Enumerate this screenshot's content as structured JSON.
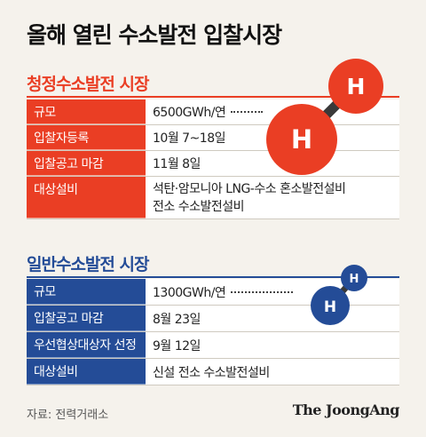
{
  "title": "올해 열린 수소발전 입찰시장",
  "clean_market": {
    "title": "청정수소발전 시장",
    "rows": [
      {
        "label": "규모",
        "value": "6500GWh/연"
      },
      {
        "label": "입찰자등록",
        "value": "10월 7~18일"
      },
      {
        "label": "입찰공고 마감",
        "value": "11월 8일"
      },
      {
        "label": "대상설비",
        "value_lines": [
          "석탄·암모니아 LNG-수소 혼소발전설비",
          "전소 수소발전설비"
        ]
      }
    ]
  },
  "general_market": {
    "title": "일반수소발전 시장",
    "rows": [
      {
        "label": "규모",
        "value": "1300GWh/연"
      },
      {
        "label": "입찰공고 마감",
        "value": "8월 23일"
      },
      {
        "label": "우선협상대상자 선정",
        "value": "9월 12일"
      },
      {
        "label": "대상설비",
        "value": "신설 전소 수소발전설비"
      }
    ]
  },
  "atom_symbol": "H",
  "source": "자료: 전력거래소",
  "brand": "The JoongAng",
  "colors": {
    "clean": "#ea3e24",
    "general": "#244c97",
    "background": "#f5f2ec"
  }
}
